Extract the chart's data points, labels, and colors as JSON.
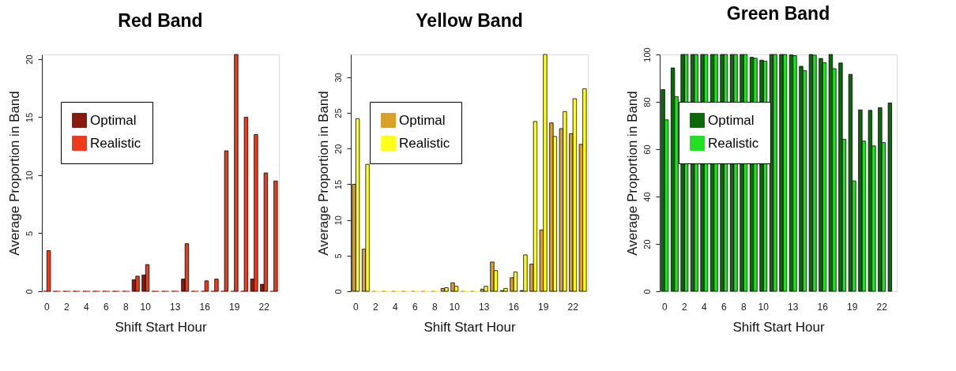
{
  "chart_data": [
    {
      "type": "bar",
      "title": "Red Band",
      "xlabel": "Shift Start Hour",
      "ylabel": "Average Proportion in Band",
      "categories": [
        "0",
        null,
        "2",
        null,
        "4",
        null,
        "6",
        null,
        "8",
        null,
        "10",
        null,
        null,
        "13",
        null,
        null,
        "16",
        null,
        null,
        "19",
        null,
        null,
        "22",
        null
      ],
      "series": [
        {
          "name": "Optimal",
          "color": "#8b1a0e",
          "values": [
            0,
            0,
            0,
            0,
            0,
            0,
            0,
            0,
            0,
            1.0,
            1.4,
            0,
            0,
            0,
            1.05,
            0,
            0,
            0,
            0,
            0,
            0,
            1.05,
            0.6,
            0
          ]
        },
        {
          "name": "Realistic",
          "color": "#ee3a1a",
          "values": [
            3.5,
            0,
            0,
            0,
            0,
            0,
            0,
            0,
            0,
            1.3,
            2.3,
            0,
            0,
            0,
            4.1,
            0,
            0.9,
            1.05,
            12.1,
            20.4,
            15.0,
            13.5,
            10.2,
            9.5
          ]
        }
      ],
      "ylim": [
        0,
        20.4
      ],
      "yticks": [
        0,
        5,
        10,
        15,
        20
      ],
      "legend": "top left",
      "grid": false
    },
    {
      "type": "bar",
      "title": "Yellow Band",
      "xlabel": "Shift Start Hour",
      "ylabel": "Average Proportion in Band",
      "categories": [
        "0",
        null,
        "2",
        null,
        "4",
        null,
        "6",
        null,
        "8",
        null,
        "10",
        null,
        null,
        "13",
        null,
        null,
        "16",
        null,
        null,
        "19",
        null,
        null,
        "22",
        null
      ],
      "series": [
        {
          "name": "Optimal",
          "color": "#d9a02a",
          "values": [
            15.0,
            5.9,
            0,
            0,
            0,
            0,
            0,
            0,
            0,
            0.4,
            1.2,
            0,
            0,
            0.3,
            4.1,
            0.1,
            1.9,
            0.1,
            3.8,
            8.6,
            23.6,
            22.8,
            22.1,
            20.6
          ]
        },
        {
          "name": "Realistic",
          "color": "#ffff1a",
          "values": [
            24.2,
            17.8,
            0,
            0,
            0,
            0,
            0,
            0,
            0,
            0.5,
            0.7,
            0,
            0,
            0.7,
            2.9,
            0.4,
            2.7,
            5.1,
            23.8,
            33.2,
            21.7,
            25.2,
            27.0,
            28.4
          ]
        }
      ],
      "ylim": [
        0,
        33.2
      ],
      "yticks": [
        0,
        5,
        10,
        15,
        20,
        25,
        30
      ],
      "legend": "top left",
      "grid": false
    },
    {
      "type": "bar",
      "title": "Green Band",
      "xlabel": "Shift Start Hour",
      "ylabel": "Average Proportion in Band",
      "categories": [
        "0",
        null,
        "2",
        null,
        "4",
        null,
        "6",
        null,
        "8",
        null,
        "10",
        null,
        null,
        "13",
        null,
        null,
        "16",
        null,
        null,
        "19",
        null,
        null,
        "22",
        null
      ],
      "series": [
        {
          "name": "Optimal",
          "color": "#0a6a0a",
          "values": [
            85.2,
            94.3,
            100,
            100,
            100,
            100,
            100,
            100,
            100,
            98.8,
            97.6,
            100,
            100,
            99.8,
            95.0,
            100,
            98.3,
            100,
            96.4,
            91.6,
            76.6,
            76.4,
            77.5,
            79.5
          ]
        },
        {
          "name": "Realistic",
          "color": "#22e022",
          "values": [
            72.4,
            82.2,
            100,
            100,
            100,
            100,
            100,
            100,
            100,
            98.4,
            97.2,
            100,
            100,
            99.5,
            93.2,
            99.7,
            96.5,
            94.0,
            64.2,
            46.6,
            63.4,
            61.4,
            62.8,
            null
          ]
        }
      ],
      "ylim": [
        0,
        100
      ],
      "yticks": [
        0,
        20,
        40,
        60,
        80,
        100
      ],
      "legend": "top left",
      "grid": false
    }
  ]
}
